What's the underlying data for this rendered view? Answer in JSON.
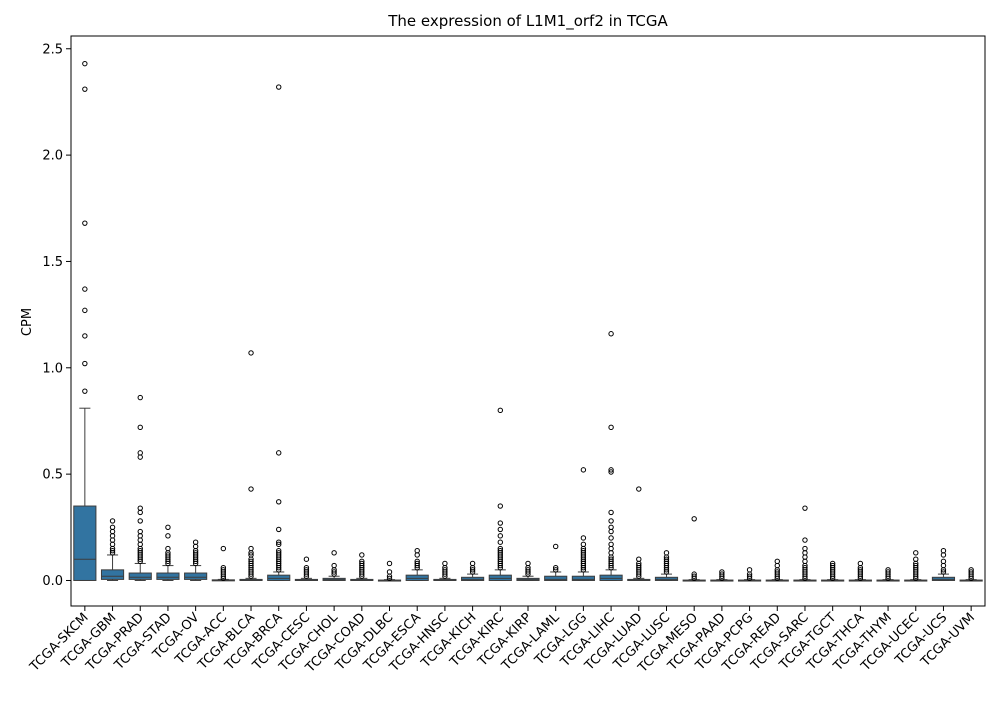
{
  "chart_data": {
    "type": "box",
    "title": "The expression of L1M1_orf2 in TCGA",
    "xlabel": "",
    "ylabel": "CPM",
    "ylim": [
      -0.12,
      2.56
    ],
    "yticks": [
      0.0,
      0.5,
      1.0,
      1.5,
      2.0,
      2.5
    ],
    "ytick_labels": [
      "0.0",
      "0.5",
      "1.0",
      "1.5",
      "2.0",
      "2.5"
    ],
    "grid": false,
    "box_color": "#3274a1",
    "categories": [
      "TCGA-SKCM",
      "TCGA-GBM",
      "TCGA-PRAD",
      "TCGA-STAD",
      "TCGA-OV",
      "TCGA-ACC",
      "TCGA-BLCA",
      "TCGA-BRCA",
      "TCGA-CESC",
      "TCGA-CHOL",
      "TCGA-COAD",
      "TCGA-DLBC",
      "TCGA-ESCA",
      "TCGA-HNSC",
      "TCGA-KICH",
      "TCGA-KIRC",
      "TCGA-KIRP",
      "TCGA-LAML",
      "TCGA-LGG",
      "TCGA-LIHC",
      "TCGA-LUAD",
      "TCGA-LUSC",
      "TCGA-MESO",
      "TCGA-PAAD",
      "TCGA-PCPG",
      "TCGA-READ",
      "TCGA-SARC",
      "TCGA-TGCT",
      "TCGA-THCA",
      "TCGA-THYM",
      "TCGA-UCEC",
      "TCGA-UCS",
      "TCGA-UVM"
    ],
    "boxes": [
      {
        "q1": 0.0,
        "median": 0.1,
        "q3": 0.35,
        "wlo": 0.0,
        "whi": 0.81,
        "outliers": [
          0.89,
          1.02,
          1.15,
          1.27,
          1.37,
          1.68,
          2.31,
          2.43
        ]
      },
      {
        "q1": 0.005,
        "median": 0.02,
        "q3": 0.05,
        "wlo": 0.0,
        "whi": 0.12,
        "outliers": [
          0.13,
          0.14,
          0.15,
          0.17,
          0.19,
          0.21,
          0.23,
          0.25,
          0.28
        ]
      },
      {
        "q1": 0.005,
        "median": 0.015,
        "q3": 0.035,
        "wlo": 0.0,
        "whi": 0.08,
        "outliers": [
          0.09,
          0.1,
          0.11,
          0.12,
          0.13,
          0.14,
          0.15,
          0.17,
          0.19,
          0.21,
          0.23,
          0.28,
          0.32,
          0.34,
          0.58,
          0.6,
          0.72,
          0.86
        ]
      },
      {
        "q1": 0.005,
        "median": 0.015,
        "q3": 0.035,
        "wlo": 0.0,
        "whi": 0.07,
        "outliers": [
          0.08,
          0.09,
          0.1,
          0.11,
          0.12,
          0.13,
          0.15,
          0.21,
          0.25
        ]
      },
      {
        "q1": 0.005,
        "median": 0.015,
        "q3": 0.035,
        "wlo": 0.0,
        "whi": 0.07,
        "outliers": [
          0.08,
          0.09,
          0.1,
          0.11,
          0.12,
          0.13,
          0.14,
          0.16,
          0.18
        ]
      },
      {
        "q1": 0.0,
        "median": 0.0,
        "q3": 0.003,
        "wlo": 0.0,
        "whi": 0.005,
        "outliers": [
          0.01,
          0.02,
          0.03,
          0.04,
          0.05,
          0.06,
          0.15
        ]
      },
      {
        "q1": 0.0,
        "median": 0.0,
        "q3": 0.005,
        "wlo": 0.0,
        "whi": 0.01,
        "outliers": [
          0.02,
          0.03,
          0.04,
          0.05,
          0.06,
          0.07,
          0.08,
          0.09,
          0.1,
          0.12,
          0.13,
          0.15,
          0.43,
          1.07
        ]
      },
      {
        "q1": 0.0,
        "median": 0.01,
        "q3": 0.025,
        "wlo": 0.0,
        "whi": 0.04,
        "outliers": [
          0.05,
          0.06,
          0.07,
          0.08,
          0.09,
          0.1,
          0.11,
          0.12,
          0.13,
          0.14,
          0.17,
          0.18,
          0.24,
          0.37,
          0.6,
          2.32
        ]
      },
      {
        "q1": 0.0,
        "median": 0.0,
        "q3": 0.005,
        "wlo": 0.0,
        "whi": 0.01,
        "outliers": [
          0.02,
          0.03,
          0.04,
          0.05,
          0.06,
          0.1
        ]
      },
      {
        "q1": 0.0,
        "median": 0.005,
        "q3": 0.01,
        "wlo": 0.0,
        "whi": 0.02,
        "outliers": [
          0.03,
          0.04,
          0.05,
          0.07,
          0.13
        ]
      },
      {
        "q1": 0.0,
        "median": 0.0,
        "q3": 0.005,
        "wlo": 0.0,
        "whi": 0.01,
        "outliers": [
          0.02,
          0.03,
          0.04,
          0.05,
          0.06,
          0.07,
          0.08,
          0.09,
          0.12
        ]
      },
      {
        "q1": 0.0,
        "median": 0.0,
        "q3": 0.002,
        "wlo": 0.0,
        "whi": 0.004,
        "outliers": [
          0.01,
          0.02,
          0.04,
          0.08
        ]
      },
      {
        "q1": 0.0,
        "median": 0.01,
        "q3": 0.025,
        "wlo": 0.0,
        "whi": 0.05,
        "outliers": [
          0.06,
          0.07,
          0.08,
          0.09,
          0.12,
          0.14
        ]
      },
      {
        "q1": 0.0,
        "median": 0.0,
        "q3": 0.005,
        "wlo": 0.0,
        "whi": 0.01,
        "outliers": [
          0.02,
          0.03,
          0.04,
          0.05,
          0.06,
          0.08
        ]
      },
      {
        "q1": 0.0,
        "median": 0.005,
        "q3": 0.015,
        "wlo": 0.0,
        "whi": 0.03,
        "outliers": [
          0.04,
          0.05,
          0.06,
          0.08
        ]
      },
      {
        "q1": 0.0,
        "median": 0.01,
        "q3": 0.025,
        "wlo": 0.0,
        "whi": 0.05,
        "outliers": [
          0.06,
          0.07,
          0.08,
          0.09,
          0.1,
          0.11,
          0.12,
          0.13,
          0.14,
          0.15,
          0.18,
          0.21,
          0.24,
          0.27,
          0.35,
          0.8
        ]
      },
      {
        "q1": 0.0,
        "median": 0.005,
        "q3": 0.01,
        "wlo": 0.0,
        "whi": 0.02,
        "outliers": [
          0.03,
          0.04,
          0.05,
          0.06,
          0.08
        ]
      },
      {
        "q1": 0.0,
        "median": 0.005,
        "q3": 0.02,
        "wlo": 0.0,
        "whi": 0.04,
        "outliers": [
          0.05,
          0.06,
          0.16
        ]
      },
      {
        "q1": 0.0,
        "median": 0.005,
        "q3": 0.02,
        "wlo": 0.0,
        "whi": 0.04,
        "outliers": [
          0.05,
          0.06,
          0.07,
          0.08,
          0.09,
          0.1,
          0.11,
          0.12,
          0.13,
          0.14,
          0.15,
          0.17,
          0.2,
          0.52
        ]
      },
      {
        "q1": 0.0,
        "median": 0.01,
        "q3": 0.025,
        "wlo": 0.0,
        "whi": 0.05,
        "outliers": [
          0.06,
          0.07,
          0.08,
          0.09,
          0.1,
          0.11,
          0.13,
          0.15,
          0.17,
          0.2,
          0.23,
          0.25,
          0.28,
          0.32,
          0.51,
          0.52,
          0.72,
          1.16
        ]
      },
      {
        "q1": 0.0,
        "median": 0.0,
        "q3": 0.005,
        "wlo": 0.0,
        "whi": 0.01,
        "outliers": [
          0.02,
          0.03,
          0.04,
          0.05,
          0.06,
          0.07,
          0.08,
          0.1,
          0.43
        ]
      },
      {
        "q1": 0.0,
        "median": 0.005,
        "q3": 0.015,
        "wlo": 0.0,
        "whi": 0.03,
        "outliers": [
          0.04,
          0.05,
          0.06,
          0.07,
          0.08,
          0.09,
          0.1,
          0.11,
          0.13
        ]
      },
      {
        "q1": 0.0,
        "median": 0.0,
        "q3": 0.002,
        "wlo": 0.0,
        "whi": 0.004,
        "outliers": [
          0.01,
          0.02,
          0.03,
          0.29
        ]
      },
      {
        "q1": 0.0,
        "median": 0.0,
        "q3": 0.002,
        "wlo": 0.0,
        "whi": 0.004,
        "outliers": [
          0.01,
          0.02,
          0.03,
          0.04
        ]
      },
      {
        "q1": 0.0,
        "median": 0.0,
        "q3": 0.002,
        "wlo": 0.0,
        "whi": 0.004,
        "outliers": [
          0.01,
          0.02,
          0.03,
          0.05
        ]
      },
      {
        "q1": 0.0,
        "median": 0.0,
        "q3": 0.002,
        "wlo": 0.0,
        "whi": 0.004,
        "outliers": [
          0.01,
          0.02,
          0.03,
          0.04,
          0.05,
          0.07,
          0.09
        ]
      },
      {
        "q1": 0.0,
        "median": 0.0,
        "q3": 0.002,
        "wlo": 0.0,
        "whi": 0.004,
        "outliers": [
          0.01,
          0.02,
          0.03,
          0.04,
          0.05,
          0.06,
          0.07,
          0.09,
          0.11,
          0.13,
          0.15,
          0.19,
          0.34
        ]
      },
      {
        "q1": 0.0,
        "median": 0.0,
        "q3": 0.002,
        "wlo": 0.0,
        "whi": 0.004,
        "outliers": [
          0.01,
          0.02,
          0.03,
          0.04,
          0.05,
          0.06,
          0.07,
          0.08
        ]
      },
      {
        "q1": 0.0,
        "median": 0.0,
        "q3": 0.002,
        "wlo": 0.0,
        "whi": 0.004,
        "outliers": [
          0.01,
          0.02,
          0.03,
          0.04,
          0.05,
          0.06,
          0.08
        ]
      },
      {
        "q1": 0.0,
        "median": 0.0,
        "q3": 0.002,
        "wlo": 0.0,
        "whi": 0.004,
        "outliers": [
          0.01,
          0.02,
          0.03,
          0.04,
          0.05
        ]
      },
      {
        "q1": 0.0,
        "median": 0.0,
        "q3": 0.002,
        "wlo": 0.0,
        "whi": 0.004,
        "outliers": [
          0.01,
          0.02,
          0.03,
          0.04,
          0.05,
          0.06,
          0.07,
          0.08,
          0.1,
          0.13
        ]
      },
      {
        "q1": 0.0,
        "median": 0.005,
        "q3": 0.015,
        "wlo": 0.0,
        "whi": 0.03,
        "outliers": [
          0.04,
          0.05,
          0.07,
          0.09,
          0.12,
          0.14
        ]
      },
      {
        "q1": 0.0,
        "median": 0.0,
        "q3": 0.002,
        "wlo": 0.0,
        "whi": 0.004,
        "outliers": [
          0.01,
          0.02,
          0.03,
          0.04,
          0.05
        ]
      }
    ]
  }
}
